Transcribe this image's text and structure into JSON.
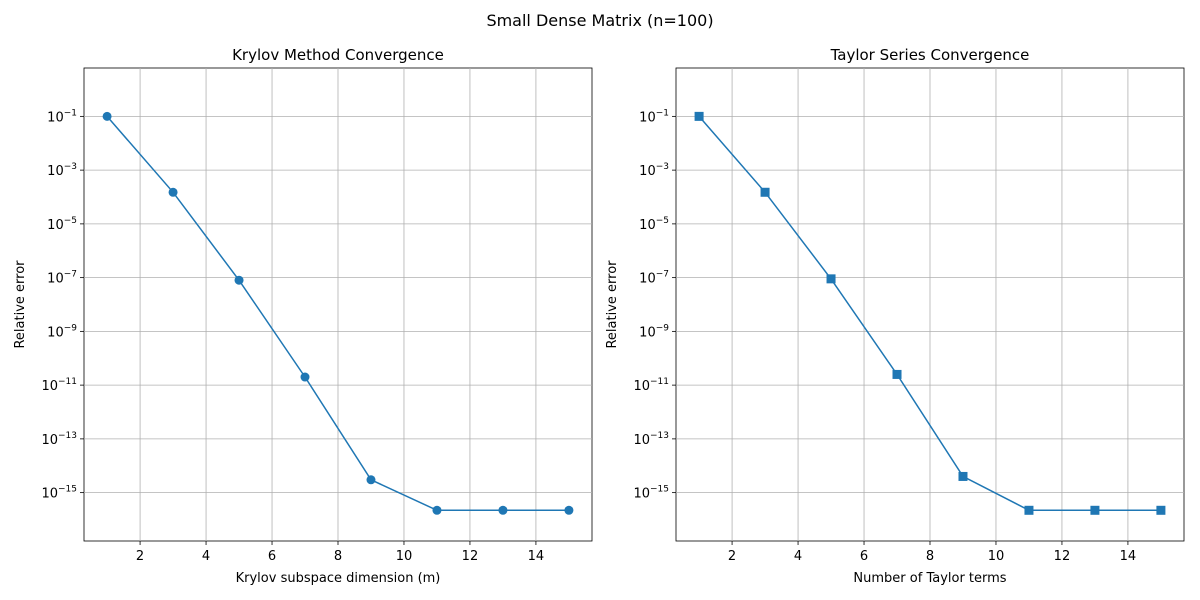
{
  "suptitle": "Small Dense Matrix (n=100)",
  "colors": {
    "series": "#1f77b4",
    "grid": "#b0b0b0"
  },
  "chart_data": [
    {
      "type": "line",
      "title": "Krylov Method Convergence",
      "xlabel": "Krylov subspace dimension (m)",
      "ylabel": "Relative error",
      "yscale": "log",
      "grid": true,
      "marker": "circle",
      "xlim": [
        0.3,
        15.7
      ],
      "ylim_log10": [
        -16.8,
        0.8
      ],
      "xticks": [
        2,
        4,
        6,
        8,
        10,
        12,
        14
      ],
      "yticks_exp": [
        -1,
        -3,
        -5,
        -7,
        -9,
        -11,
        -13,
        -15
      ],
      "x": [
        1,
        3,
        5,
        7,
        9,
        11,
        13,
        15
      ],
      "y": [
        0.1,
        0.00015,
        8e-08,
        2e-11,
        3e-15,
        2.2e-16,
        2.2e-16,
        2.2e-16
      ]
    },
    {
      "type": "line",
      "title": "Taylor Series Convergence",
      "xlabel": "Number of Taylor terms",
      "ylabel": "Relative error",
      "yscale": "log",
      "grid": true,
      "marker": "square",
      "xlim": [
        0.3,
        15.7
      ],
      "ylim_log10": [
        -16.8,
        0.8
      ],
      "xticks": [
        2,
        4,
        6,
        8,
        10,
        12,
        14
      ],
      "yticks_exp": [
        -1,
        -3,
        -5,
        -7,
        -9,
        -11,
        -13,
        -15
      ],
      "x": [
        1,
        3,
        5,
        7,
        9,
        11,
        13,
        15
      ],
      "y": [
        0.1,
        0.00015,
        9e-08,
        2.5e-11,
        4e-15,
        2.2e-16,
        2.2e-16,
        2.2e-16
      ]
    }
  ]
}
